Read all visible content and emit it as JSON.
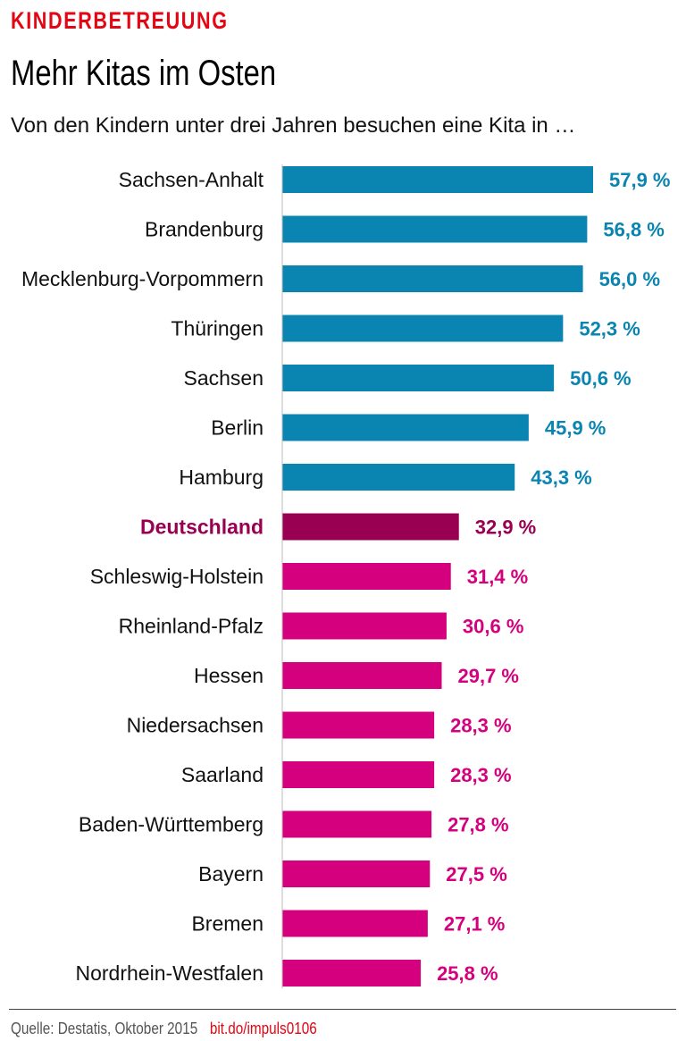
{
  "kicker": "KINDERBETREUUNG",
  "chart_data": {
    "type": "bar",
    "orientation": "horizontal",
    "title": "Mehr Kitas im Osten",
    "subtitle": "Von den Kindern unter drei Jahren besuchen eine Kita in …",
    "categories": [
      "Sachsen-Anhalt",
      "Brandenburg",
      "Mecklenburg-Vorpommern",
      "Thüringen",
      "Sachsen",
      "Berlin",
      "Hamburg",
      "Deutschland",
      "Schleswig-Holstein",
      "Rheinland-Pfalz",
      "Hessen",
      "Niedersachsen",
      "Saarland",
      "Baden-Württemberg",
      "Bayern",
      "Bremen",
      "Nordrhein-Westfalen"
    ],
    "values": [
      57.9,
      56.8,
      56.0,
      52.3,
      50.6,
      45.9,
      43.3,
      32.9,
      31.4,
      30.6,
      29.7,
      28.3,
      28.3,
      27.8,
      27.5,
      27.1,
      25.8
    ],
    "value_labels": [
      "57,9 %",
      "56,8 %",
      "56,0 %",
      "52,3 %",
      "50,6 %",
      "45,9 %",
      "43,3 %",
      "32,9 %",
      "31,4 %",
      "30,6 %",
      "29,7 %",
      "28,3 %",
      "28,3 %",
      "27,8 %",
      "27,5 %",
      "27,1 %",
      "25,8 %"
    ],
    "highlight": "Deutschland",
    "colors": {
      "above": "#0a84b0",
      "national": "#990052",
      "below": "#d4007e"
    },
    "xlim": [
      0,
      60
    ],
    "grid": false
  },
  "footer": {
    "source": "Quelle: Destatis, Oktober 2015",
    "link": "bit.do/impuls0106"
  }
}
